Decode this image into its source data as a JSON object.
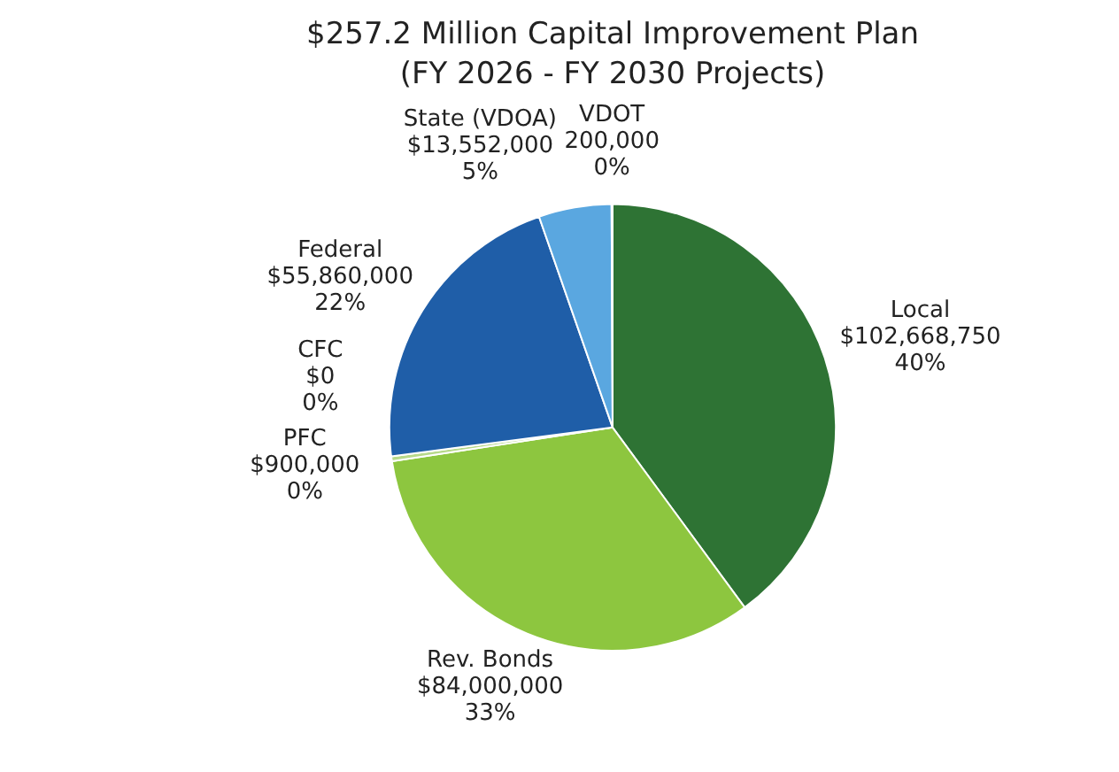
{
  "chart_data": {
    "type": "pie",
    "title": "$257.2 Million Capital Improvement Plan",
    "subtitle": "(FY 2026 - FY 2030 Projects)",
    "categories": [
      "Local",
      "Rev. Bonds",
      "PFC",
      "CFC",
      "Federal",
      "State (VDOA)",
      "VDOT"
    ],
    "values": [
      102668750,
      84000000,
      900000,
      0,
      55860000,
      13552000,
      200000
    ],
    "colors": [
      "#2e7334",
      "#8dc63f",
      "#b7d98a",
      "#6d9e3a",
      "#1f5ea8",
      "#5aa7e0",
      "#d9d9d9"
    ],
    "value_labels": [
      "$102,668,750\n40%",
      "$84,000,000\n33%",
      "$900,000\n0%",
      "$0\n0%",
      "$55,860,000\n22%",
      "$13,552,000\n5%",
      "200,000\n0%"
    ],
    "legend": false
  }
}
